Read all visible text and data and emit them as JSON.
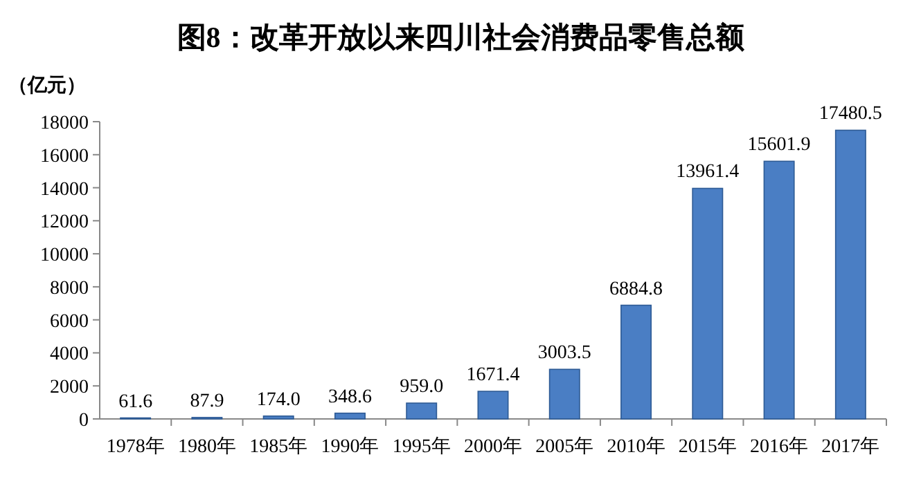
{
  "chart_data": {
    "type": "bar",
    "title": "图8：改革开放以来四川社会消费品零售总额",
    "ylabel": "（亿元）",
    "categories": [
      "1978年",
      "1980年",
      "1985年",
      "1990年",
      "1995年",
      "2000年",
      "2005年",
      "2010年",
      "2015年",
      "2016年",
      "2017年"
    ],
    "values": [
      61.6,
      87.9,
      174.0,
      348.6,
      959.0,
      1671.4,
      3003.5,
      6884.8,
      13961.4,
      15601.9,
      17480.5
    ],
    "value_labels": [
      "61.6",
      "87.9",
      "174.0",
      "348.6",
      "959.0",
      "1671.4",
      "3003.5",
      "6884.8",
      "13961.4",
      "15601.9",
      "17480.5"
    ],
    "color": "#4a7ec4",
    "ylim": [
      0,
      18000
    ],
    "yticks": [
      0,
      2000,
      4000,
      6000,
      8000,
      10000,
      12000,
      14000,
      16000,
      18000
    ]
  }
}
